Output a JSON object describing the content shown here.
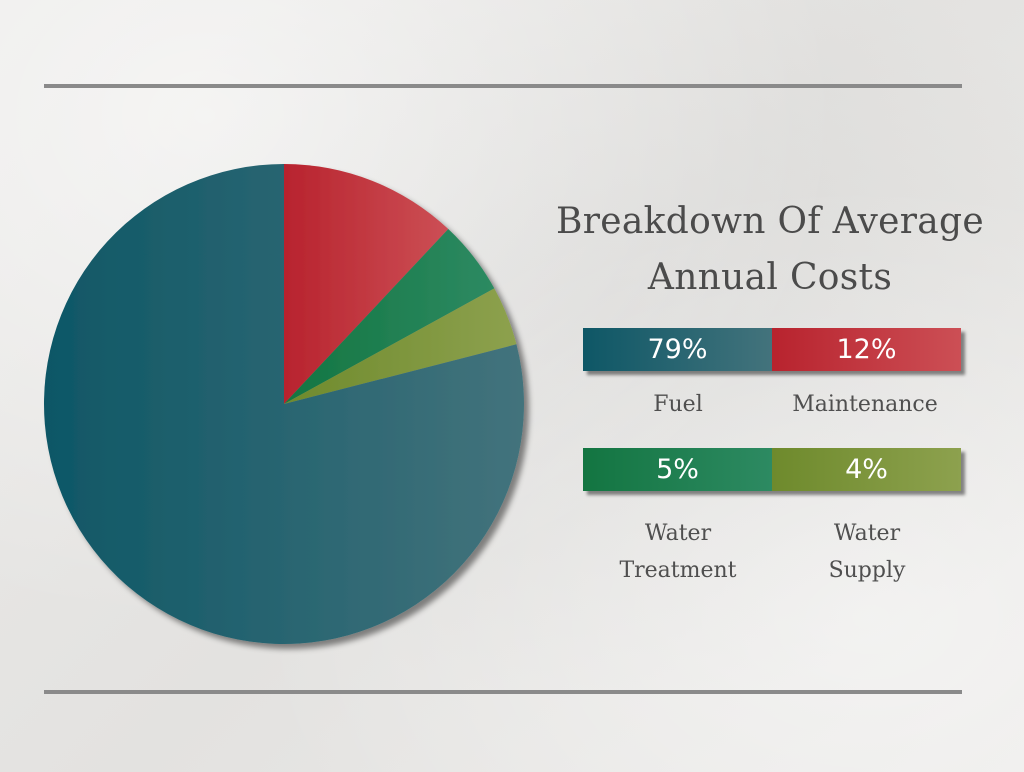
{
  "chart_data": {
    "type": "pie",
    "title": "Breakdown Of Average Annual Costs",
    "title_lines": [
      "Breakdown Of Average",
      "Annual Costs"
    ],
    "slices": [
      {
        "label": "Maintenance",
        "label_lines": [
          "Maintenance"
        ],
        "value": 12,
        "display": "12%",
        "color": "#b8232e",
        "color_light": "#cc4f55"
      },
      {
        "label": "Water Treatment",
        "label_lines": [
          "Water",
          "Treatment"
        ],
        "value": 5,
        "display": "5%",
        "color": "#137541",
        "color_light": "#2d8a62"
      },
      {
        "label": "Water Supply",
        "label_lines": [
          "Water",
          "Supply"
        ],
        "value": 4,
        "display": "4%",
        "color": "#6e8a2c",
        "color_light": "#8da14e"
      },
      {
        "label": "Fuel",
        "label_lines": [
          "Fuel"
        ],
        "value": 79,
        "display": "79%",
        "color": "#0e5766",
        "color_light": "#43737c"
      }
    ],
    "legend_placement": "right"
  }
}
